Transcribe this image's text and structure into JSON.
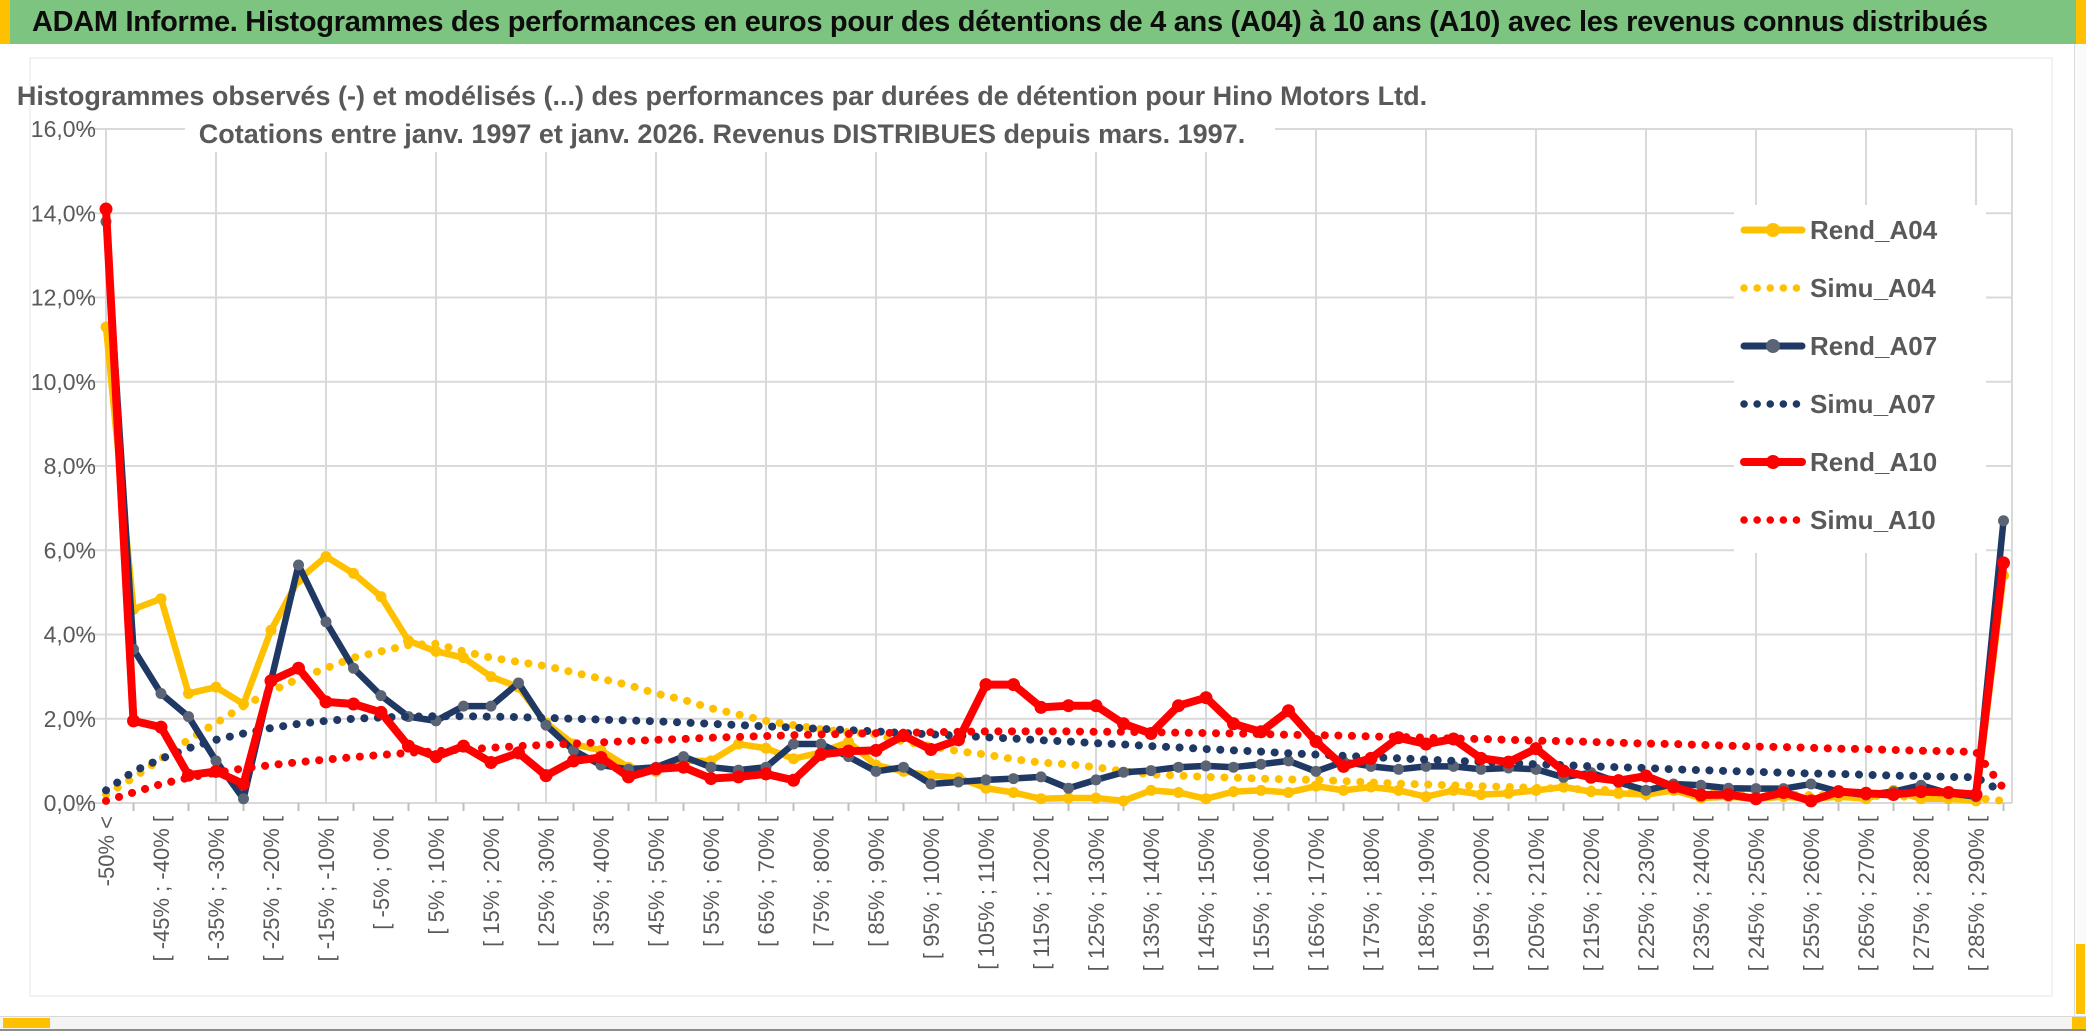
{
  "window": {
    "header_title": "ADAM Informe. Histogrammes des performances en euros pour des détentions de 4 ans (A04) à 10 ans (A10) avec les revenus connus distribués",
    "colors": {
      "header_bg": "#7CC47F",
      "header_text": "#0D0D0D",
      "accent_amber": "#FFC000",
      "scrollbar_track": "#F4F4F3",
      "window_edge": "#8C8C8C"
    }
  },
  "chart_data": {
    "type": "line",
    "title_line1": "Histogrammes observés (-) et modélisés (...) des performances par durées de détention pour Hino Motors Ltd.",
    "title_line2": "Cotations entre janv. 1997 et janv. 2026. Revenus DISTRIBUES depuis mars. 1997.",
    "ylabel": "",
    "xlabel": "",
    "ylim": [
      0,
      16
    ],
    "ytick_step": 2,
    "ytick_labels": [
      "0,0%",
      "2,0%",
      "4,0%",
      "6,0%",
      "8,0%",
      "10,0%",
      "12,0%",
      "14,0%",
      "16,0%"
    ],
    "grid": true,
    "legend_position": "inside-right",
    "axis_text_color": "#595959",
    "title_color": "#595959",
    "grid_color": "#D9D9D9",
    "tick_color": "#BFBFBF",
    "categories": [
      "-50% <",
      "",
      "[ -45% ; -40% [",
      "",
      "[ -35% ; -30% [",
      "",
      "[ -25% ; -20% [",
      "",
      "[ -15% ; -10% [",
      "",
      "[ -5% ; 0% [",
      "",
      "[ 5% ; 10% [",
      "",
      "[ 15% ; 20% [",
      "",
      "[ 25% ; 30% [",
      "",
      "[ 35% ; 40% [",
      "",
      "[ 45% ; 50% [",
      "",
      "[ 55% ; 60% [",
      "",
      "[ 65% ; 70% [",
      "",
      "[ 75% ; 80% [",
      "",
      "[ 85% ; 90% [",
      "",
      "[ 95% ; 100% [",
      "",
      "[ 105% ; 110% [",
      "",
      "[ 115% ; 120% [",
      "",
      "[ 125% ; 130% [",
      "",
      "[ 135% ; 140% [",
      "",
      "[ 145% ; 150% [",
      "",
      "[ 155% ; 160% [",
      "",
      "[ 165% ; 170% [",
      "",
      "[ 175% ; 180% [",
      "",
      "[ 185% ; 190% [",
      "",
      "[ 195% ; 200% [",
      "",
      "[ 205% ; 210% [",
      "",
      "[ 215% ; 220% [",
      "",
      "[ 225% ; 230% [",
      "",
      "[ 235% ; 240% [",
      "",
      "[ 245% ; 250% [",
      "",
      "[ 255% ; 260% [",
      "",
      "[ 265% ; 270% [",
      "",
      "[ 275% ; 280% [",
      "",
      "[ 285% ; 290% [",
      ""
    ],
    "series": [
      {
        "name": "Rend_A04",
        "style": "solid",
        "color": "#FFC000",
        "marker_color": "#FFC000",
        "thick": false,
        "values": [
          11.3,
          4.6,
          4.85,
          2.6,
          2.75,
          2.35,
          4.1,
          5.3,
          5.85,
          5.45,
          4.9,
          3.85,
          3.6,
          3.45,
          3.0,
          2.75,
          1.9,
          1.4,
          1.25,
          0.85,
          0.75,
          1.0,
          1.0,
          1.4,
          1.3,
          1.05,
          1.2,
          1.45,
          0.9,
          0.75,
          0.65,
          0.6,
          0.35,
          0.25,
          0.1,
          0.12,
          0.12,
          0.05,
          0.3,
          0.25,
          0.1,
          0.27,
          0.3,
          0.25,
          0.4,
          0.3,
          0.38,
          0.3,
          0.15,
          0.3,
          0.2,
          0.23,
          0.3,
          0.38,
          0.27,
          0.23,
          0.2,
          0.3,
          0.12,
          0.15,
          0.1,
          0.15,
          0.1,
          0.15,
          0.1,
          0.3,
          0.1,
          0.1,
          0.05,
          5.4
        ]
      },
      {
        "name": "Simu_A04",
        "style": "dotted",
        "color": "#FFC000",
        "thick": false,
        "values": [
          0.2,
          0.6,
          1.05,
          1.5,
          1.9,
          2.3,
          2.65,
          2.95,
          3.2,
          3.45,
          3.6,
          3.75,
          3.78,
          3.6,
          3.45,
          3.35,
          3.25,
          3.1,
          2.95,
          2.8,
          2.6,
          2.45,
          2.25,
          2.1,
          1.95,
          1.85,
          1.75,
          1.68,
          1.63,
          1.46,
          1.35,
          1.23,
          1.15,
          1.04,
          0.96,
          0.92,
          0.85,
          0.75,
          0.68,
          0.65,
          0.62,
          0.6,
          0.58,
          0.56,
          0.55,
          0.52,
          0.49,
          0.46,
          0.44,
          0.42,
          0.4,
          0.38,
          0.36,
          0.34,
          0.32,
          0.3,
          0.28,
          0.27,
          0.25,
          0.23,
          0.22,
          0.2,
          0.19,
          0.18,
          0.17,
          0.16,
          0.14,
          0.13,
          0.12,
          0.05
        ]
      },
      {
        "name": "Rend_A07",
        "style": "solid",
        "color": "#1F3864",
        "marker_color": "#5B6474",
        "thick": false,
        "values": [
          13.8,
          3.65,
          2.6,
          2.05,
          1.0,
          0.1,
          2.9,
          5.65,
          4.3,
          3.2,
          2.55,
          2.05,
          1.95,
          2.3,
          2.3,
          2.85,
          1.85,
          1.25,
          0.9,
          0.8,
          0.85,
          1.1,
          0.85,
          0.78,
          0.85,
          1.4,
          1.4,
          1.1,
          0.75,
          0.85,
          0.45,
          0.5,
          0.55,
          0.58,
          0.62,
          0.35,
          0.55,
          0.73,
          0.77,
          0.85,
          0.88,
          0.85,
          0.92,
          1.0,
          0.75,
          0.98,
          0.87,
          0.8,
          0.87,
          0.87,
          0.8,
          0.83,
          0.8,
          0.61,
          0.72,
          0.49,
          0.3,
          0.45,
          0.42,
          0.35,
          0.34,
          0.34,
          0.45,
          0.27,
          0.19,
          0.27,
          0.42,
          0.23,
          0.15,
          6.7
        ]
      },
      {
        "name": "Simu_A07",
        "style": "dotted",
        "color": "#1F3864",
        "thick": false,
        "values": [
          0.3,
          0.75,
          1.05,
          1.3,
          1.5,
          1.65,
          1.78,
          1.88,
          1.95,
          2.0,
          2.03,
          2.05,
          2.06,
          2.06,
          2.05,
          2.04,
          2.02,
          2.0,
          1.98,
          1.96,
          1.94,
          1.91,
          1.88,
          1.85,
          1.82,
          1.79,
          1.76,
          1.73,
          1.7,
          1.66,
          1.63,
          1.6,
          1.56,
          1.53,
          1.49,
          1.46,
          1.42,
          1.39,
          1.35,
          1.32,
          1.28,
          1.25,
          1.22,
          1.18,
          1.15,
          1.12,
          1.09,
          1.06,
          1.03,
          1.0,
          0.98,
          0.95,
          0.92,
          0.9,
          0.87,
          0.85,
          0.83,
          0.8,
          0.78,
          0.76,
          0.74,
          0.72,
          0.7,
          0.69,
          0.67,
          0.65,
          0.64,
          0.62,
          0.61,
          0.25
        ]
      },
      {
        "name": "Rend_A10",
        "style": "solid",
        "color": "#FF0000",
        "marker_color": "#FF0000",
        "thick": true,
        "values": [
          14.1,
          1.95,
          1.8,
          0.66,
          0.75,
          0.45,
          2.9,
          3.2,
          2.4,
          2.35,
          2.15,
          1.35,
          1.1,
          1.35,
          0.96,
          1.19,
          0.65,
          1.0,
          1.08,
          0.62,
          0.81,
          0.85,
          0.58,
          0.62,
          0.69,
          0.54,
          1.15,
          1.23,
          1.25,
          1.6,
          1.27,
          1.5,
          2.81,
          2.81,
          2.27,
          2.31,
          2.31,
          1.88,
          1.65,
          2.31,
          2.5,
          1.88,
          1.69,
          2.19,
          1.46,
          0.87,
          1.06,
          1.55,
          1.4,
          1.52,
          1.06,
          0.97,
          1.29,
          0.76,
          0.61,
          0.53,
          0.64,
          0.38,
          0.19,
          0.2,
          0.1,
          0.25,
          0.05,
          0.27,
          0.23,
          0.2,
          0.27,
          0.25,
          0.2,
          5.7
        ]
      },
      {
        "name": "Simu_A10",
        "style": "dotted",
        "color": "#FF0000",
        "thick": false,
        "values": [
          0.05,
          0.25,
          0.45,
          0.6,
          0.72,
          0.82,
          0.9,
          0.97,
          1.03,
          1.09,
          1.14,
          1.19,
          1.23,
          1.27,
          1.31,
          1.35,
          1.38,
          1.41,
          1.44,
          1.47,
          1.5,
          1.52,
          1.55,
          1.57,
          1.59,
          1.61,
          1.63,
          1.64,
          1.66,
          1.67,
          1.68,
          1.69,
          1.7,
          1.7,
          1.7,
          1.7,
          1.69,
          1.69,
          1.68,
          1.67,
          1.66,
          1.65,
          1.64,
          1.62,
          1.61,
          1.6,
          1.58,
          1.57,
          1.55,
          1.53,
          1.52,
          1.5,
          1.48,
          1.47,
          1.45,
          1.43,
          1.41,
          1.4,
          1.38,
          1.36,
          1.34,
          1.33,
          1.31,
          1.29,
          1.28,
          1.26,
          1.24,
          1.23,
          1.21,
          0.35
        ]
      }
    ]
  }
}
